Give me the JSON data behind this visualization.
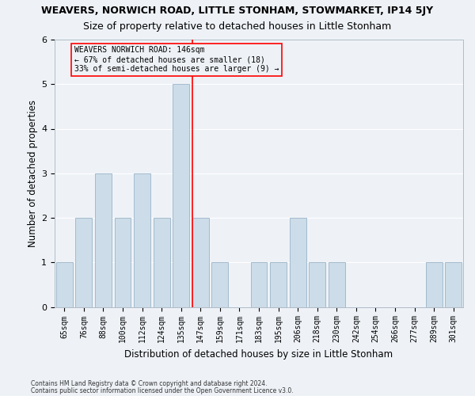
{
  "title": "WEAVERS, NORWICH ROAD, LITTLE STONHAM, STOWMARKET, IP14 5JY",
  "subtitle": "Size of property relative to detached houses in Little Stonham",
  "xlabel": "Distribution of detached houses by size in Little Stonham",
  "ylabel": "Number of detached properties",
  "footnote1": "Contains HM Land Registry data © Crown copyright and database right 2024.",
  "footnote2": "Contains public sector information licensed under the Open Government Licence v3.0.",
  "categories": [
    "65sqm",
    "76sqm",
    "88sqm",
    "100sqm",
    "112sqm",
    "124sqm",
    "135sqm",
    "147sqm",
    "159sqm",
    "171sqm",
    "183sqm",
    "195sqm",
    "206sqm",
    "218sqm",
    "230sqm",
    "242sqm",
    "254sqm",
    "266sqm",
    "277sqm",
    "289sqm",
    "301sqm"
  ],
  "values": [
    1,
    2,
    3,
    2,
    3,
    2,
    5,
    2,
    1,
    0,
    1,
    1,
    2,
    1,
    1,
    0,
    0,
    0,
    0,
    1,
    1
  ],
  "bar_color": "#ccdce8",
  "bar_edge_color": "#9ab4c8",
  "ref_line_index": 7,
  "ref_line_color": "red",
  "annotation_line1": "WEAVERS NORWICH ROAD: 146sqm",
  "annotation_line2": "← 67% of detached houses are smaller (18)",
  "annotation_line3": "33% of semi-detached houses are larger (9) →",
  "ylim": [
    0,
    6
  ],
  "background_color": "#eef2f7",
  "grid_color": "white",
  "title_fontsize": 9,
  "subtitle_fontsize": 9,
  "axis_label_fontsize": 8.5,
  "tick_fontsize": 7,
  "annotation_fontsize": 7,
  "footnote_fontsize": 5.5
}
